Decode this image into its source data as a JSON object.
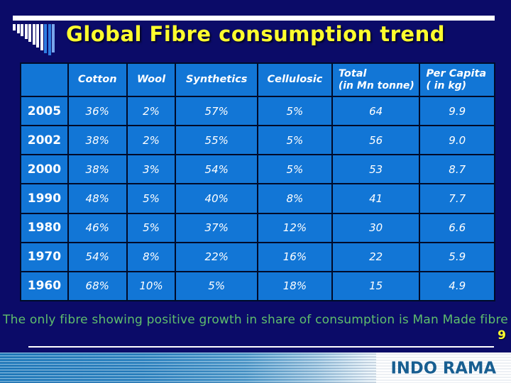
{
  "slide": {
    "title": "Global Fibre consumption trend",
    "footnote": "The only fibre showing positive growth in share of consumption is Man Made fibre",
    "page_number": "9",
    "brand": "INDO RAMA"
  },
  "table": {
    "columns": [
      {
        "label": ""
      },
      {
        "label": "Cotton"
      },
      {
        "label": "Wool"
      },
      {
        "label": "Synthetics"
      },
      {
        "label": "Cellulosic"
      },
      {
        "label": "Total",
        "sub": "(in Mn tonne)"
      },
      {
        "label": "Per Capita",
        "sub": "( in kg)"
      }
    ],
    "rows": [
      {
        "year": "2005",
        "values": [
          "36%",
          "2%",
          "57%",
          "5%",
          "64",
          "9.9"
        ]
      },
      {
        "year": "2002",
        "values": [
          "38%",
          "2%",
          "55%",
          "5%",
          "56",
          "9.0"
        ]
      },
      {
        "year": "2000",
        "values": [
          "38%",
          "3%",
          "54%",
          "5%",
          "53",
          "8.7"
        ]
      },
      {
        "year": "1990",
        "values": [
          "48%",
          "5%",
          "40%",
          "8%",
          "41",
          "7.7"
        ]
      },
      {
        "year": "1980",
        "values": [
          "46%",
          "5%",
          "37%",
          "12%",
          "30",
          "6.6"
        ]
      },
      {
        "year": "1970",
        "values": [
          "54%",
          "8%",
          "22%",
          "16%",
          "22",
          "5.9"
        ]
      },
      {
        "year": "1960",
        "values": [
          "68%",
          "10%",
          "5%",
          "18%",
          "15",
          "4.9"
        ]
      }
    ]
  },
  "colors": {
    "background": "#0b0b68",
    "cell_blue": "#1276d6",
    "border_dark": "#000a28",
    "title_yellow": "#ffff2e",
    "footnote_green": "#5fbe6c",
    "brand_blue": "#175e91"
  }
}
